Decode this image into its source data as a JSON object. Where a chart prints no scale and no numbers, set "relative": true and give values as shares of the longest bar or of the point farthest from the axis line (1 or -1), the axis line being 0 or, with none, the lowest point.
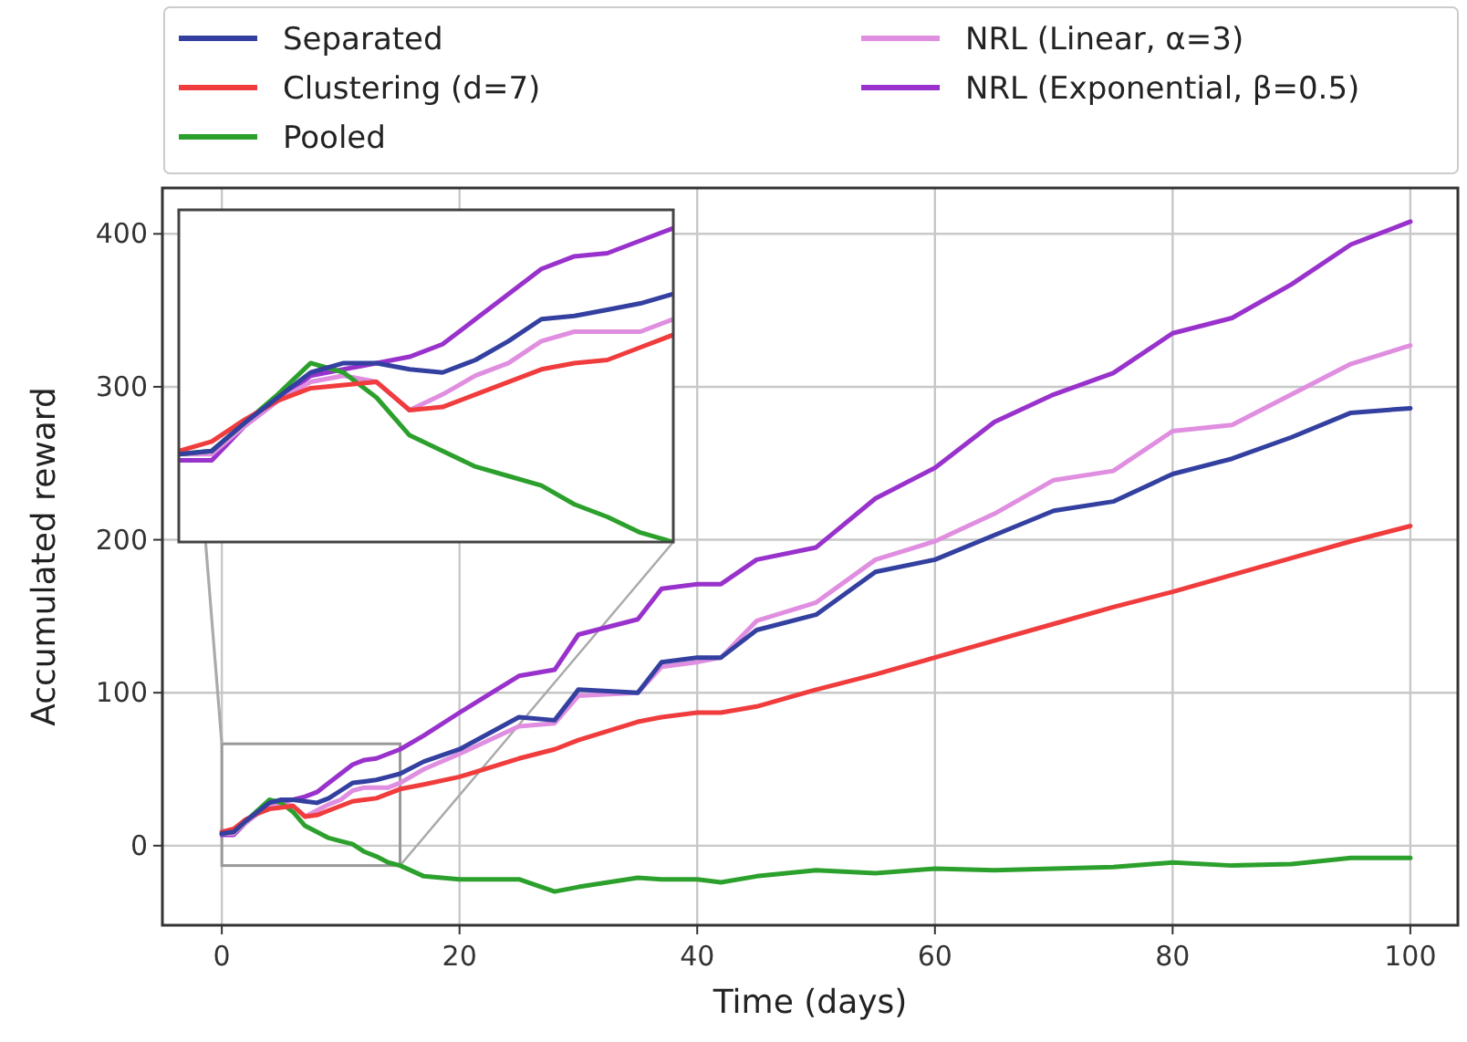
{
  "chart_data": [
    {
      "type": "line",
      "xlabel": "Time (days)",
      "ylabel": "Accumulated reward",
      "x": [
        0,
        1,
        2,
        3,
        4,
        5,
        6,
        7,
        8,
        9,
        10,
        11,
        12,
        13,
        14,
        15,
        17,
        20,
        25,
        28,
        30,
        35,
        37,
        40,
        42,
        45,
        50,
        55,
        60,
        65,
        70,
        75,
        80,
        85,
        90,
        95,
        100
      ],
      "series": [
        {
          "name": "Separated",
          "color": "#3340a0",
          "values": [
            8,
            9,
            16,
            22,
            28,
            30,
            30,
            29,
            28,
            31,
            36,
            41,
            42,
            43,
            45,
            47,
            55,
            63,
            84,
            82,
            102,
            100,
            120,
            123,
            123,
            141,
            151,
            179,
            187,
            203,
            219,
            225,
            243,
            253,
            267,
            283,
            286
          ]
        },
        {
          "name": "Clustering (d=7)",
          "color": "#f03c3c",
          "values": [
            9,
            11,
            17,
            21,
            24,
            25,
            26,
            19,
            20,
            23,
            26,
            29,
            30,
            31,
            34,
            37,
            40,
            45,
            57,
            63,
            69,
            81,
            84,
            87,
            87,
            91,
            102,
            112,
            123,
            134,
            145,
            156,
            166,
            177,
            188,
            199,
            209
          ]
        },
        {
          "name": "Pooled",
          "color": "#2ca02c",
          "values": [
            8,
            9,
            16,
            23,
            30,
            28,
            22,
            13,
            9,
            5,
            3,
            1,
            -4,
            -7,
            -11,
            -13,
            -20,
            -22,
            -22,
            -30,
            -27,
            -21,
            -22,
            -22,
            -24,
            -20,
            -16,
            -18,
            -15,
            -16,
            -15,
            -14,
            -11,
            -13,
            -12,
            -8,
            -8
          ]
        },
        {
          "name": "NRL (Linear, α=3)",
          "color": "#e08ee0",
          "values": [
            8,
            8,
            15,
            21,
            26,
            27,
            26,
            19,
            23,
            27,
            30,
            36,
            38,
            38,
            38,
            41,
            50,
            60,
            78,
            80,
            98,
            100,
            117,
            120,
            123,
            147,
            159,
            187,
            199,
            217,
            239,
            245,
            271,
            275,
            295,
            315,
            327
          ]
        },
        {
          "name": "NRL (Exponential, β=0.5)",
          "color": "#9932cc",
          "values": [
            7,
            7,
            15,
            21,
            27,
            29,
            30,
            32,
            35,
            41,
            47,
            53,
            56,
            57,
            60,
            63,
            72,
            87,
            111,
            115,
            138,
            148,
            168,
            171,
            171,
            187,
            195,
            227,
            247,
            277,
            295,
            309,
            335,
            345,
            367,
            393,
            408
          ]
        }
      ],
      "xlim": [
        -5,
        104
      ],
      "ylim": [
        -52,
        430
      ],
      "xticks": [
        0,
        20,
        40,
        60,
        80,
        100
      ],
      "yticks": [
        0,
        100,
        200,
        300,
        400
      ],
      "grid": true,
      "legend": "top"
    },
    {
      "type": "line",
      "relative": true,
      "categories": [
        null,
        null,
        null,
        null,
        null,
        null,
        null,
        null,
        null,
        null,
        null,
        null,
        null,
        null,
        null,
        null
      ],
      "series": [
        {
          "color": "#3340a0",
          "values": [
            0.28,
            0.29,
            0.38,
            0.46,
            0.54,
            0.57,
            0.57,
            0.55,
            0.54,
            0.58,
            0.64,
            0.71,
            0.72,
            0.74,
            0.76,
            0.79
          ]
        },
        {
          "color": "#f03c3c",
          "values": [
            0.29,
            0.32,
            0.39,
            0.45,
            0.49,
            0.5,
            0.51,
            0.42,
            0.43,
            0.47,
            0.51,
            0.55,
            0.57,
            0.58,
            0.62,
            0.66
          ]
        },
        {
          "color": "#2ca02c",
          "values": [
            0.28,
            0.29,
            0.38,
            0.47,
            0.57,
            0.54,
            0.46,
            0.34,
            0.29,
            0.24,
            0.21,
            0.18,
            0.12,
            0.08,
            0.03,
            0
          ]
        },
        {
          "color": "#e08ee0",
          "values": [
            0.28,
            0.28,
            0.37,
            0.45,
            0.51,
            0.53,
            0.51,
            0.42,
            0.47,
            0.53,
            0.57,
            0.64,
            0.67,
            0.67,
            0.67,
            0.71
          ]
        },
        {
          "color": "#9932cc",
          "values": [
            0.26,
            0.26,
            0.37,
            0.45,
            0.53,
            0.55,
            0.57,
            0.59,
            0.63,
            0.71,
            0.79,
            0.87,
            0.91,
            0.92,
            0.96,
            1
          ]
        }
      ]
    }
  ]
}
